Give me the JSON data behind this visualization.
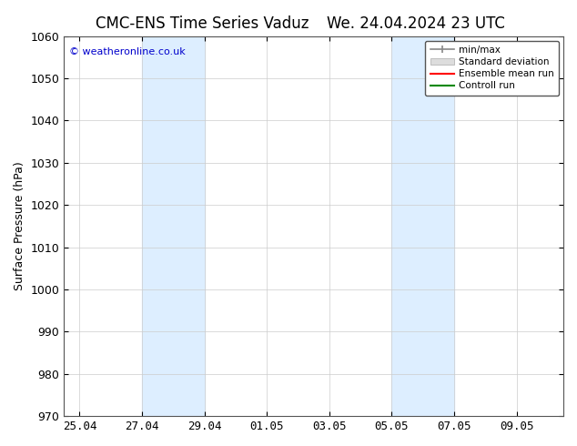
{
  "title_left": "CMC-ENS Time Series Vaduz",
  "title_right": "We. 24.04.2024 23 UTC",
  "ylabel": "Surface Pressure (hPa)",
  "ylim": [
    970,
    1060
  ],
  "yticks": [
    970,
    980,
    990,
    1000,
    1010,
    1020,
    1030,
    1040,
    1050,
    1060
  ],
  "xlim_start": "2024-04-25",
  "xlim_end": "2024-09-10",
  "xtick_labels": [
    "25.04",
    "27.04",
    "29.04",
    "01.05",
    "03.05",
    "05.05",
    "07.05",
    "09.05"
  ],
  "xtick_positions": [
    0,
    2,
    4,
    6,
    8,
    10,
    12,
    14
  ],
  "shade_bands": [
    {
      "x_start": 2,
      "x_end": 4
    },
    {
      "x_start": 10,
      "x_end": 12
    }
  ],
  "shade_color": "#ddeeff",
  "background_color": "#ffffff",
  "watermark": "© weatheronline.co.uk",
  "legend_items": [
    {
      "label": "min/max",
      "color": "#aaaaaa",
      "style": "line"
    },
    {
      "label": "Standard deviation",
      "color": "#cccccc",
      "style": "band"
    },
    {
      "label": "Ensemble mean run",
      "color": "#ff0000",
      "style": "line"
    },
    {
      "label": "Controll run",
      "color": "#00aa00",
      "style": "line"
    }
  ],
  "title_fontsize": 12,
  "axis_fontsize": 9,
  "tick_fontsize": 9,
  "grid_color": "#cccccc",
  "border_color": "#555555"
}
